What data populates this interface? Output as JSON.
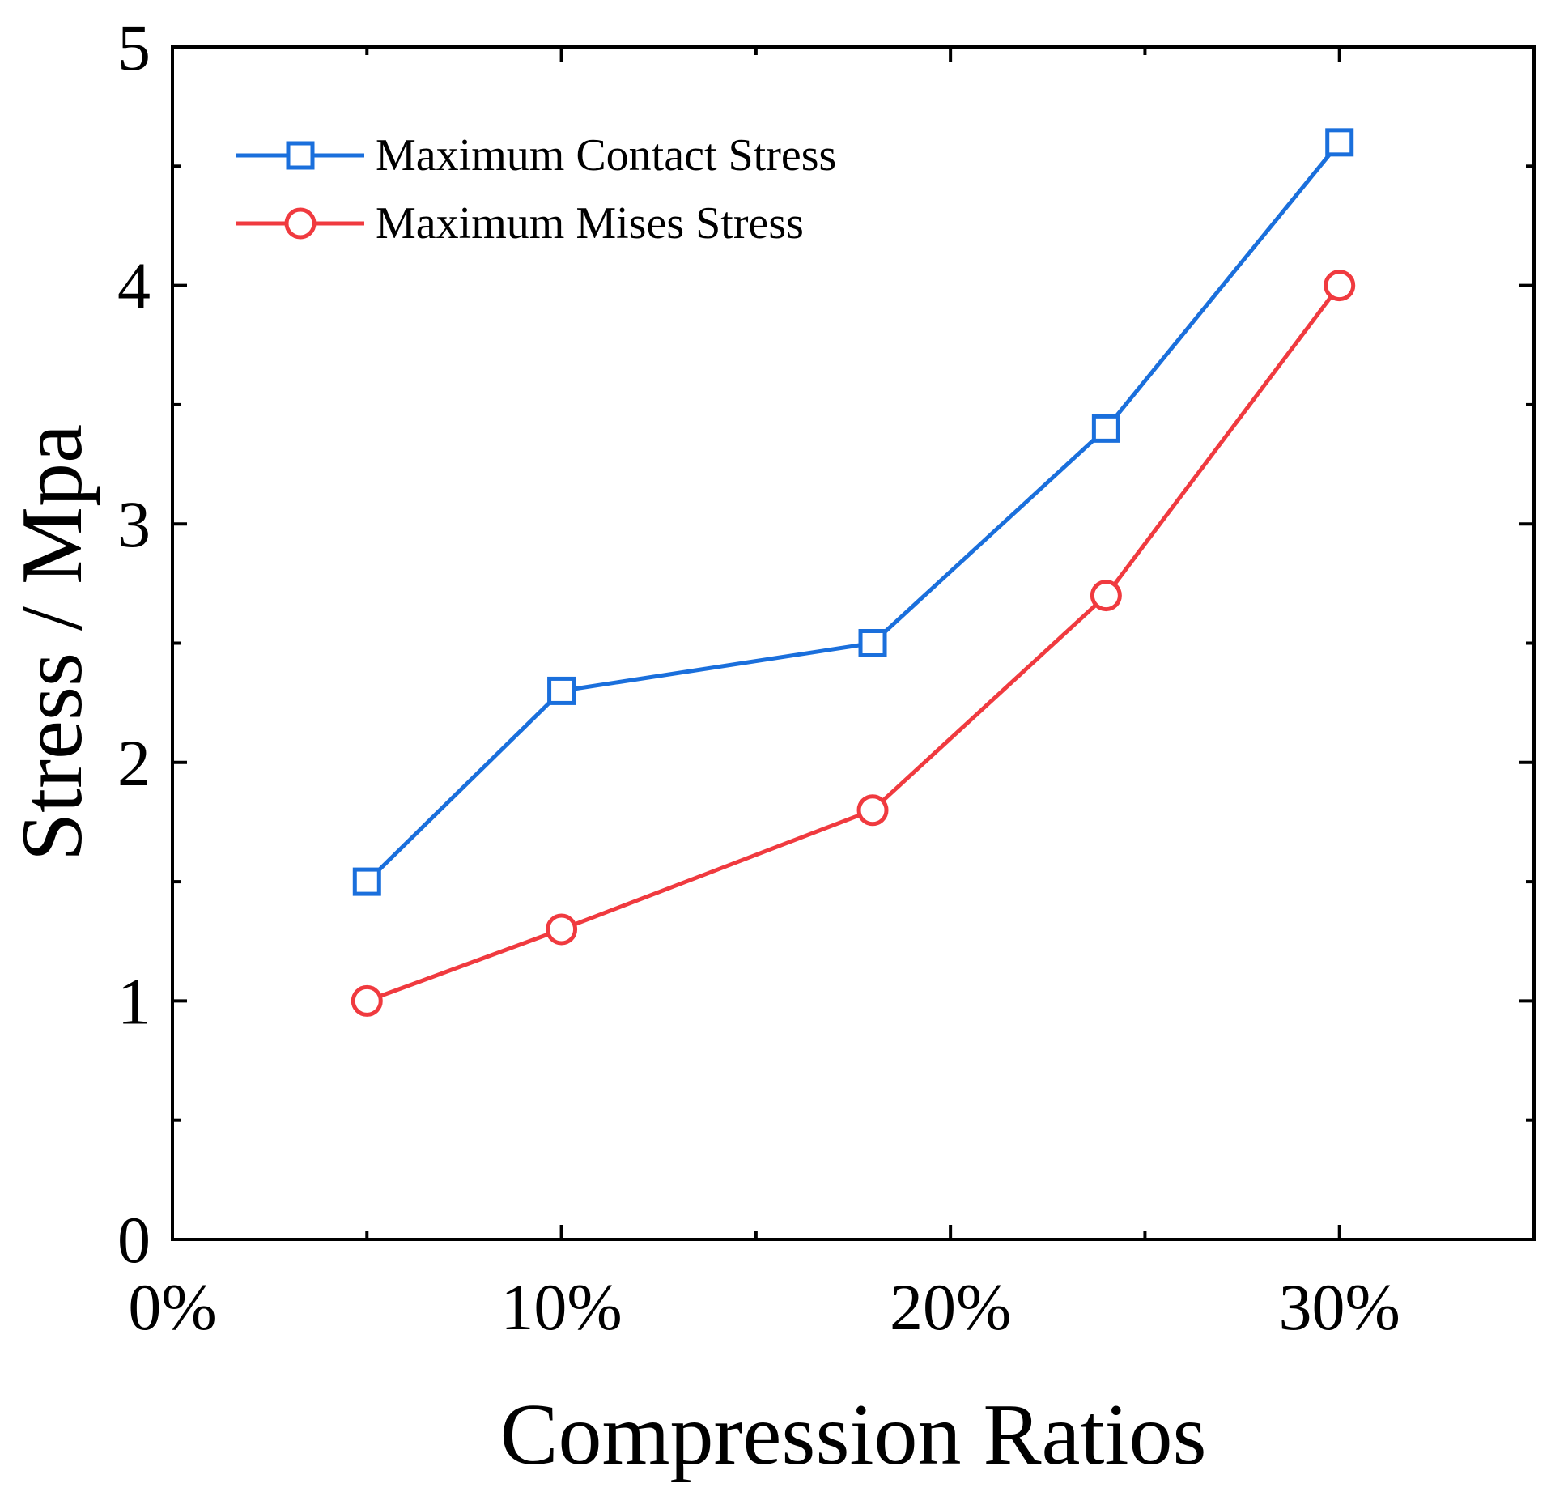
{
  "chart_data": {
    "type": "line",
    "title": "",
    "xlabel": "Compression Ratios",
    "ylabel": "Stress / Mpa",
    "x": [
      5,
      10,
      18,
      24,
      30
    ],
    "xlim": [
      0,
      35
    ],
    "ylim": [
      0,
      5
    ],
    "x_ticks": [
      {
        "value": 0,
        "label": "0%"
      },
      {
        "value": 10,
        "label": "10%"
      },
      {
        "value": 20,
        "label": "20%"
      },
      {
        "value": 30,
        "label": "30%"
      }
    ],
    "x_minor_ticks": [
      5,
      15,
      25
    ],
    "y_ticks": [
      {
        "value": 0,
        "label": "0"
      },
      {
        "value": 1,
        "label": "1"
      },
      {
        "value": 2,
        "label": "2"
      },
      {
        "value": 3,
        "label": "3"
      },
      {
        "value": 4,
        "label": "4"
      },
      {
        "value": 5,
        "label": "5"
      }
    ],
    "y_minor_ticks": [
      0.5,
      1.5,
      2.5,
      3.5,
      4.5
    ],
    "grid": false,
    "legend_position": "top-left",
    "series": [
      {
        "name": "Maximum Contact Stress",
        "values": [
          1.5,
          2.3,
          2.5,
          3.4,
          4.6
        ],
        "color": "#1a6fdc",
        "marker": "square"
      },
      {
        "name": "Maximum Mises Stress",
        "values": [
          1.0,
          1.3,
          1.8,
          2.7,
          4.0
        ],
        "color": "#f03a3f",
        "marker": "circle"
      }
    ]
  }
}
